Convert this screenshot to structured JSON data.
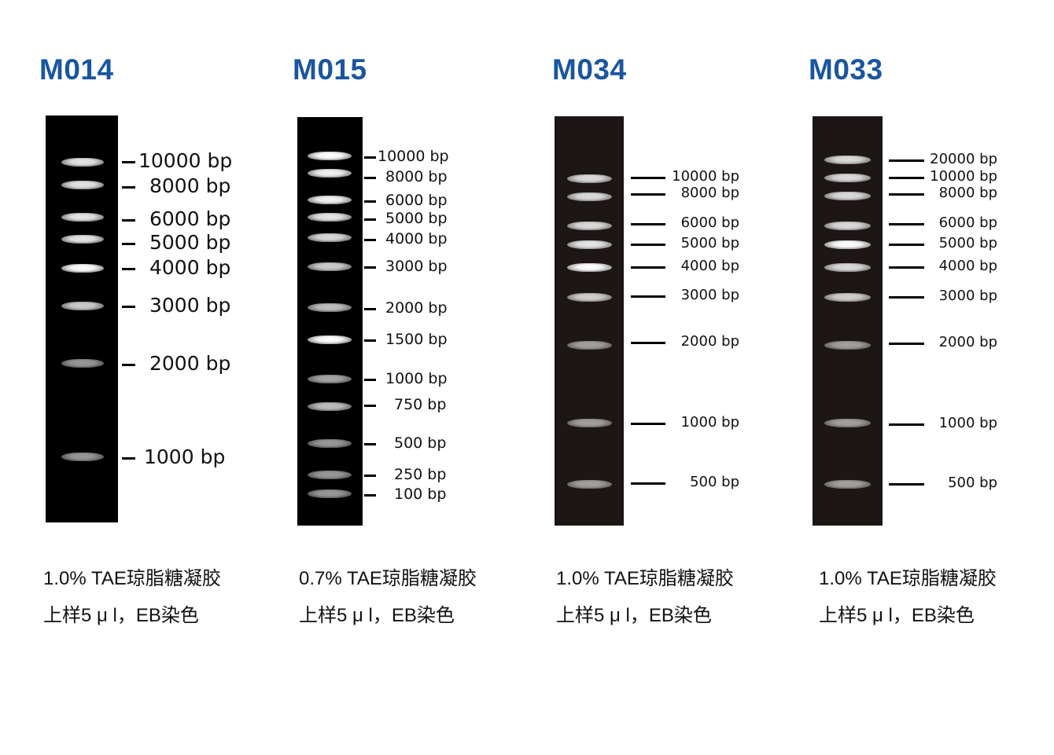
{
  "panels": [
    {
      "title": "M014",
      "gel_color": "#000000",
      "labels": [
        "10000 bp",
        "8000 bp",
        "6000 bp",
        "5000 bp",
        "4000 bp",
        "3000 bp",
        "2000 bp",
        "1000 bp"
      ],
      "caption_line1": "1.0% TAE琼脂糖凝胶",
      "caption_line2": "上样5 μ l，EB染色"
    },
    {
      "title": "M015",
      "gel_color": "#000000",
      "labels": [
        "10000 bp",
        "8000 bp",
        "6000 bp",
        "5000 bp",
        "4000 bp",
        "3000 bp",
        "2000 bp",
        "1500 bp",
        "1000 bp",
        "750 bp",
        "500 bp",
        "250 bp",
        "100 bp"
      ],
      "caption_line1": "0.7% TAE琼脂糖凝胶",
      "caption_line2": "上样5 μ l，EB染色"
    },
    {
      "title": "M034",
      "gel_color": "#1c1614",
      "labels": [
        "10000 bp",
        "8000 bp",
        "6000 bp",
        "5000 bp",
        "4000 bp",
        "3000 bp",
        "2000 bp",
        "1000 bp",
        "500 bp"
      ],
      "caption_line1": "1.0% TAE琼脂糖凝胶",
      "caption_line2": "上样5 μ l，EB染色"
    },
    {
      "title": "M033",
      "gel_color": "#1c1614",
      "labels": [
        "20000 bp",
        "10000 bp",
        "8000 bp",
        "6000 bp",
        "5000 bp",
        "4000 bp",
        "3000 bp",
        "2000 bp",
        "1000 bp",
        "500 bp"
      ],
      "caption_line1": "1.0% TAE琼脂糖凝胶",
      "caption_line2": "上样5 μ l，EB染色"
    }
  ],
  "colors": {
    "title": "#1a56a0"
  }
}
